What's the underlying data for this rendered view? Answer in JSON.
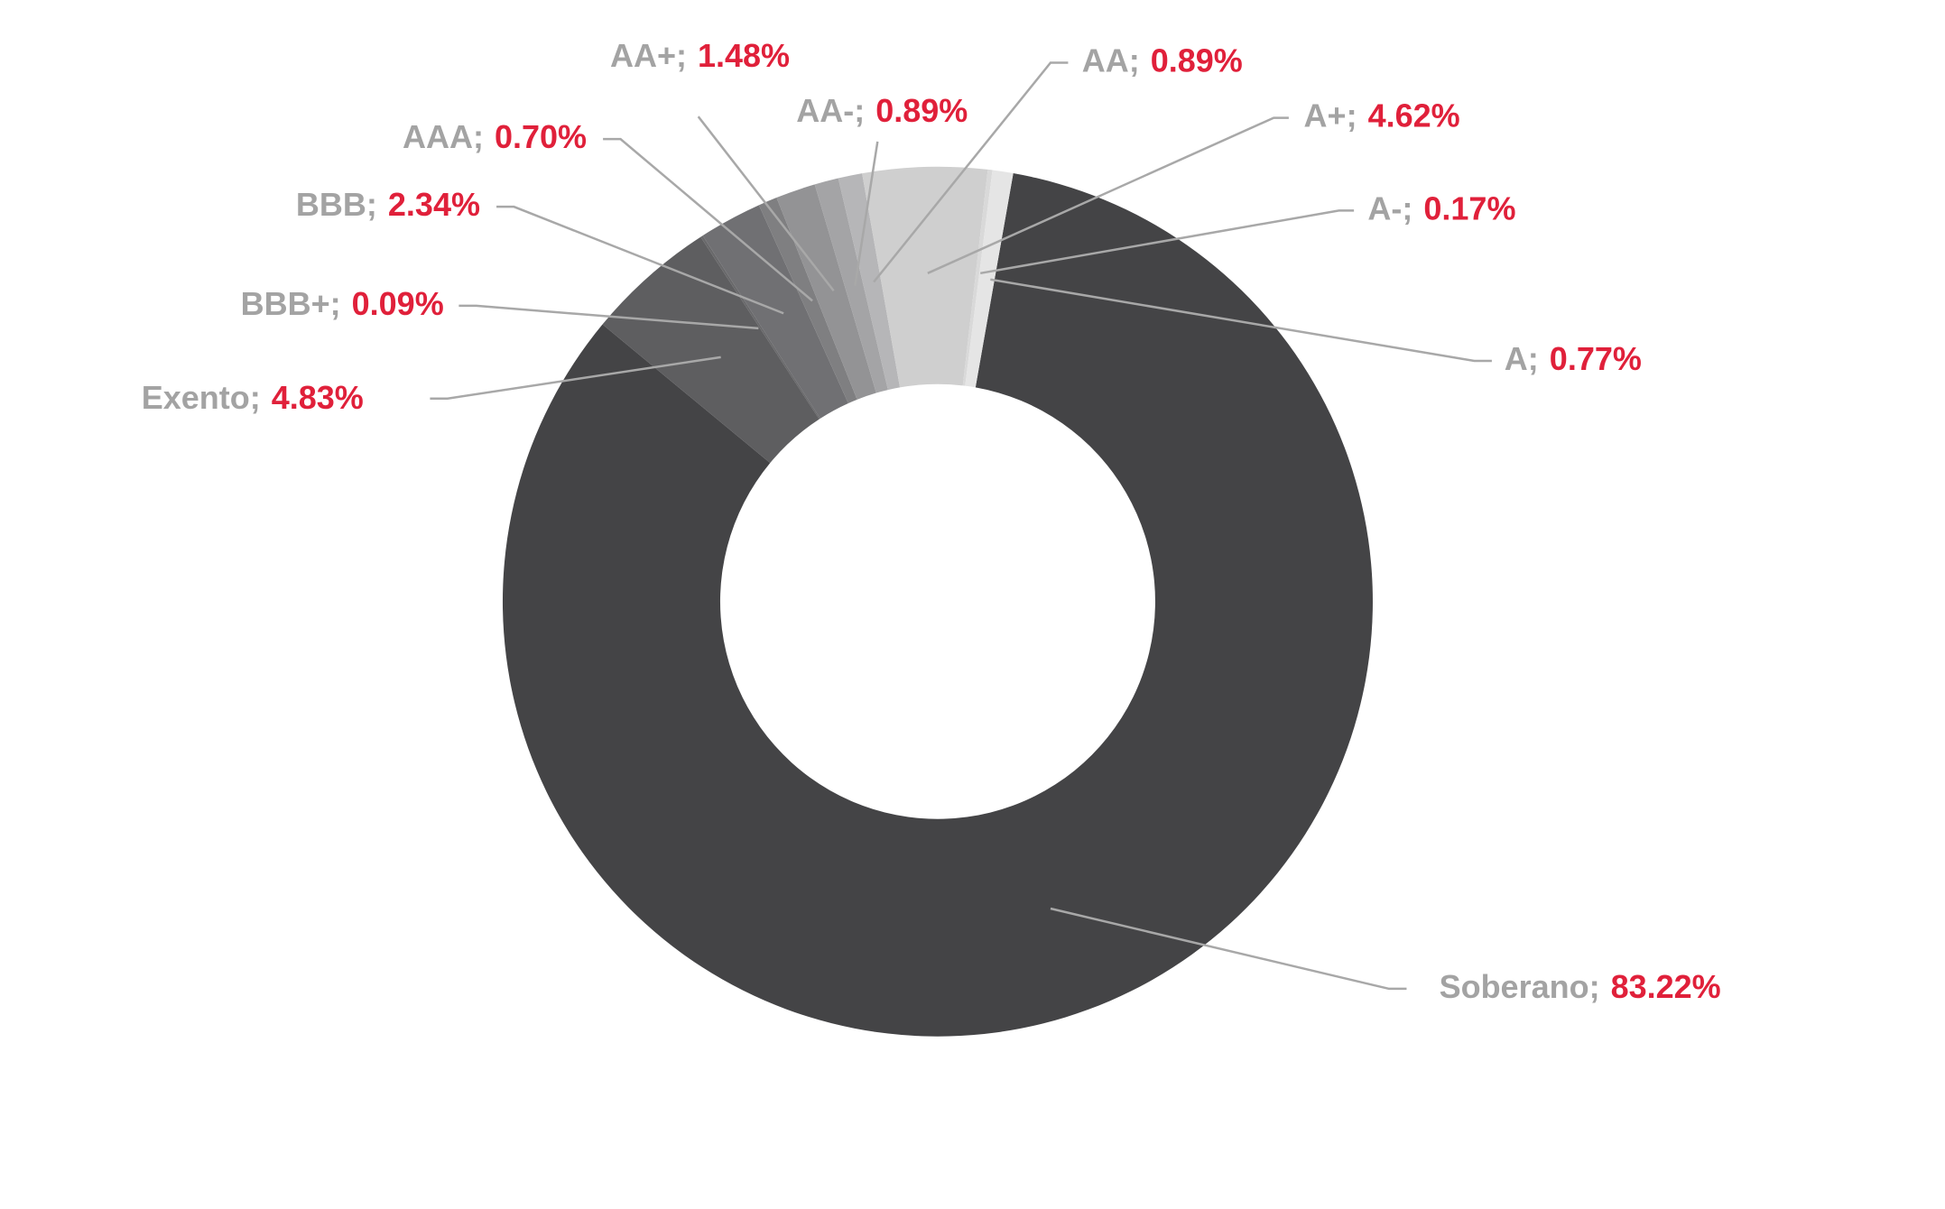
{
  "chart_data": {
    "type": "donut",
    "categories": [
      "Soberano",
      "Exento",
      "BBB+",
      "BBB",
      "AAA",
      "AA+",
      "AA-",
      "AA",
      "A+",
      "A-",
      "A"
    ],
    "values": [
      83.22,
      4.83,
      0.09,
      2.34,
      0.7,
      1.48,
      0.89,
      0.89,
      4.62,
      0.17,
      0.77
    ],
    "value_labels": [
      "83.22%",
      "4.83%",
      "0.09%",
      "2.34%",
      "0.70%",
      "1.48%",
      "0.89%",
      "0.89%",
      "4.62%",
      "0.17%",
      "0.77%"
    ],
    "label_separator": ";",
    "colors": [
      "#444446",
      "#5e5e60",
      "#69696b",
      "#707073",
      "#7f7f81",
      "#939395",
      "#a4a4a6",
      "#b6b6b8",
      "#cfcfcf",
      "#d9d9d9",
      "#e5e5e5"
    ],
    "label_color": "#a3a3a3",
    "value_color": "#e0203a"
  }
}
